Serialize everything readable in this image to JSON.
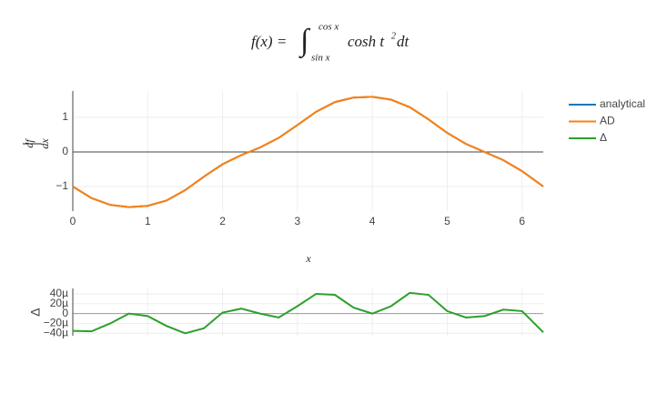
{
  "chart_data": [
    {
      "type": "line",
      "title": {
        "lhs": "f(x) =",
        "integral": "∫",
        "upper": "cos x",
        "lower": "sin x",
        "integrand": "cosh t",
        "power": "2",
        "differential": "dt"
      },
      "y_label": {
        "num": "df",
        "den": "dx"
      },
      "x_label": "x",
      "x": [
        0,
        0.25,
        0.5,
        0.75,
        1,
        1.25,
        1.5,
        1.75,
        2,
        2.25,
        2.5,
        2.75,
        3,
        3.25,
        3.5,
        3.75,
        4,
        4.25,
        4.5,
        4.75,
        5,
        5.25,
        5.5,
        5.75,
        6,
        6.283
      ],
      "series": [
        {
          "name": "analytical",
          "color": "#1f77b4",
          "values": [
            -1,
            -1.335,
            -1.53,
            -1.594,
            -1.559,
            -1.406,
            -1.106,
            -0.716,
            -0.356,
            -0.093,
            0.127,
            0.405,
            0.776,
            1.159,
            1.438,
            1.571,
            1.591,
            1.51,
            1.293,
            0.941,
            0.55,
            0.231,
            -0.002,
            -0.238,
            -0.556,
            -1
          ]
        },
        {
          "name": "AD",
          "color": "#ff7f0e",
          "values": [
            -1,
            -1.335,
            -1.53,
            -1.594,
            -1.559,
            -1.406,
            -1.106,
            -0.716,
            -0.356,
            -0.093,
            0.127,
            0.405,
            0.776,
            1.159,
            1.438,
            1.571,
            1.591,
            1.51,
            1.293,
            0.941,
            0.55,
            0.231,
            -0.002,
            -0.238,
            -0.556,
            -1
          ]
        }
      ],
      "xlim": [
        0,
        6.283
      ],
      "xticks": [
        0,
        1,
        2,
        3,
        4,
        5,
        6
      ],
      "ylim": [
        -1.71,
        1.76
      ],
      "yticks": [
        {
          "value": -1,
          "label": "−1"
        },
        0,
        1
      ],
      "grid": true
    },
    {
      "type": "line",
      "y_label": "Δ",
      "x": [
        0,
        0.25,
        0.5,
        0.75,
        1,
        1.25,
        1.5,
        1.75,
        2,
        2.25,
        2.5,
        2.75,
        3,
        3.25,
        3.5,
        3.75,
        4,
        4.25,
        4.5,
        4.75,
        5,
        5.25,
        5.5,
        5.75,
        6,
        6.283
      ],
      "series": [
        {
          "name": "Δ",
          "color": "#2ca02c",
          "values": [
            -3.5e-05,
            -3.6e-05,
            -2e-05,
            0,
            -5e-06,
            -2.5e-05,
            -4e-05,
            -3e-05,
            2e-06,
            1e-05,
            0,
            -8e-06,
            1.5e-05,
            4e-05,
            3.8e-05,
            1.2e-05,
            0,
            1.5e-05,
            4.2e-05,
            3.8e-05,
            5e-06,
            -8e-06,
            -5e-06,
            8e-06,
            5e-06,
            -3.8e-05
          ]
        }
      ],
      "xlim": [
        0,
        6.283
      ],
      "xticks": [
        0,
        1,
        2,
        3,
        4,
        5,
        6
      ],
      "ylim": [
        -4.5e-05,
        5.1e-05
      ],
      "yticks": [
        {
          "value": 4e-05,
          "label": "40µ"
        },
        {
          "value": 2e-05,
          "label": "20µ"
        },
        0,
        {
          "value": -2e-05,
          "label": "−20µ"
        },
        {
          "value": -4e-05,
          "label": "−40µ"
        }
      ],
      "grid": true
    }
  ]
}
